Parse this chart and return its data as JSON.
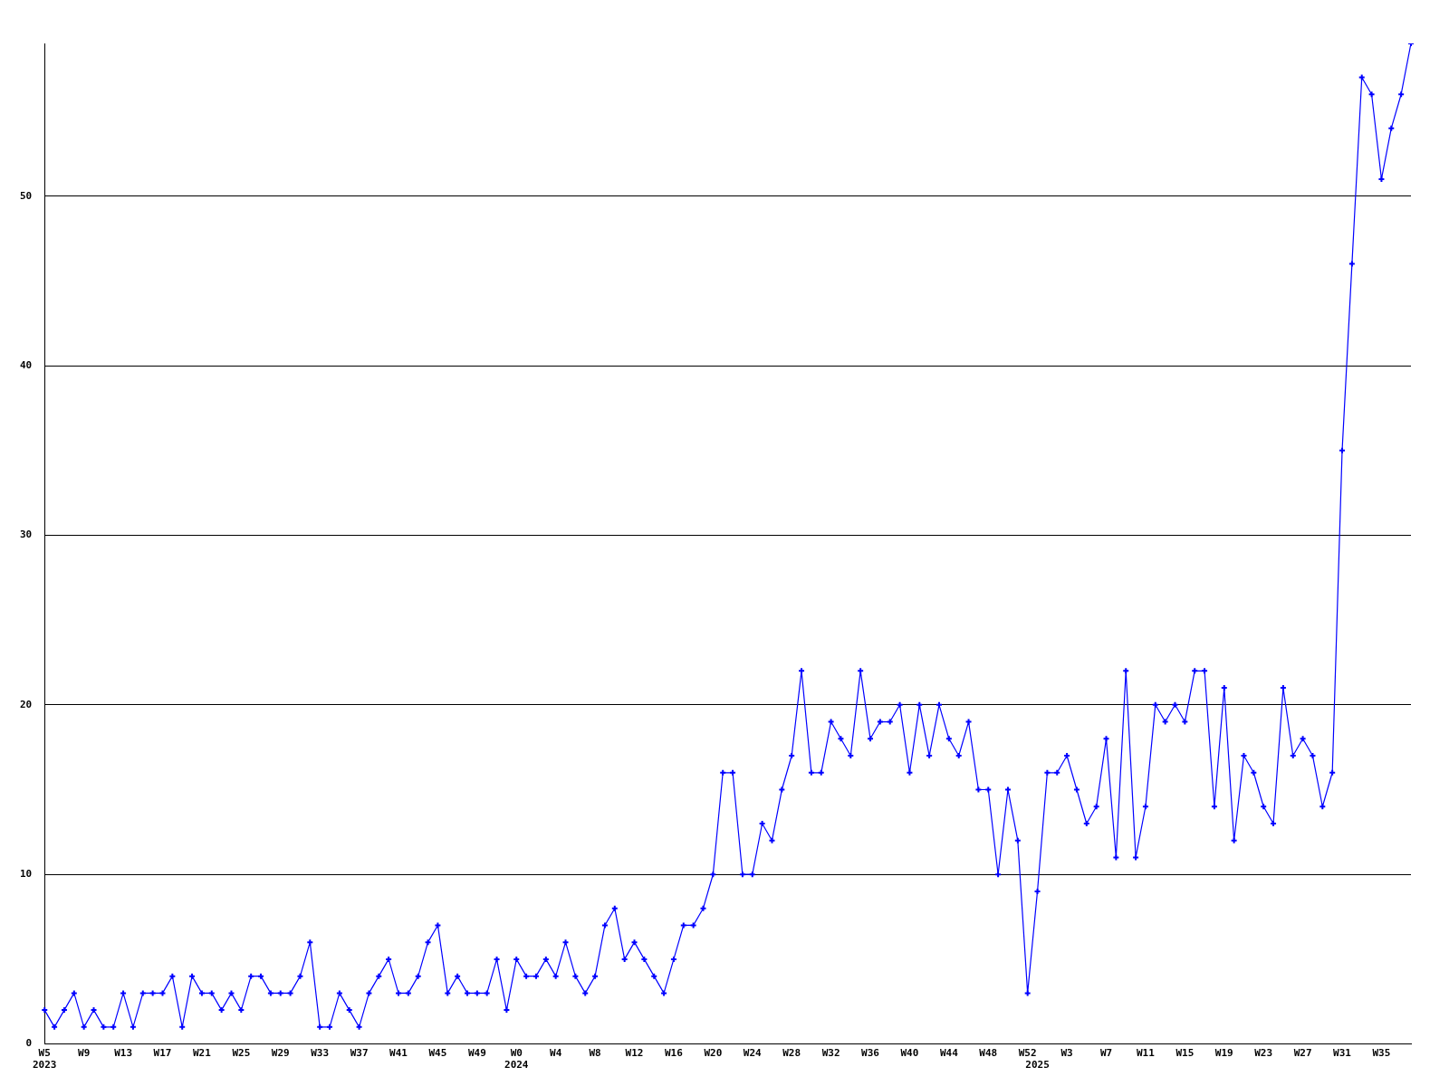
{
  "chart_data": {
    "type": "line",
    "categories": [
      "W5\n2023",
      null,
      null,
      null,
      "W9",
      null,
      null,
      null,
      "W13",
      null,
      null,
      null,
      "W17",
      null,
      null,
      null,
      "W21",
      null,
      null,
      null,
      "W25",
      null,
      null,
      null,
      "W29",
      null,
      null,
      null,
      "W33",
      null,
      null,
      null,
      "W37",
      null,
      null,
      null,
      "W41",
      null,
      null,
      null,
      "W45",
      null,
      null,
      null,
      "W49",
      null,
      null,
      null,
      "W0\n2024",
      null,
      null,
      null,
      "W4",
      null,
      null,
      null,
      "W8",
      null,
      null,
      null,
      "W12",
      null,
      null,
      null,
      "W16",
      null,
      null,
      null,
      "W20",
      null,
      null,
      null,
      "W24",
      null,
      null,
      null,
      "W28",
      null,
      null,
      null,
      "W32",
      null,
      null,
      null,
      "W36",
      null,
      null,
      null,
      "W40",
      null,
      null,
      null,
      "W44",
      null,
      null,
      null,
      "W48",
      null,
      null,
      null,
      "W52",
      "\n2025",
      null,
      null,
      "W3",
      null,
      null,
      null,
      "W7",
      null,
      null,
      null,
      "W11",
      null,
      null,
      null,
      "W15",
      null,
      null,
      null,
      "W19",
      null,
      null,
      null,
      "W23",
      null,
      null,
      null,
      "W27",
      null,
      null,
      null,
      "W31",
      null,
      null,
      null,
      "W35",
      null,
      null,
      null
    ],
    "series": [
      {
        "color": "#0000ff",
        "values": [
          2,
          1,
          2,
          3,
          1,
          2,
          1,
          1,
          3,
          1,
          3,
          3,
          3,
          4,
          1,
          4,
          3,
          3,
          2,
          3,
          2,
          4,
          4,
          3,
          3,
          3,
          4,
          6,
          1,
          1,
          3,
          2,
          1,
          3,
          4,
          5,
          3,
          3,
          4,
          6,
          7,
          3,
          4,
          3,
          3,
          3,
          5,
          2,
          5,
          4,
          4,
          5,
          4,
          6,
          4,
          3,
          4,
          7,
          8,
          5,
          6,
          5,
          4,
          3,
          5,
          7,
          7,
          8,
          10,
          16,
          16,
          10,
          10,
          13,
          12,
          15,
          17,
          22,
          16,
          16,
          19,
          18,
          17,
          22,
          18,
          19,
          19,
          20,
          16,
          20,
          17,
          20,
          18,
          17,
          19,
          15,
          15,
          10,
          15,
          12,
          3,
          9,
          16,
          16,
          17,
          15,
          13,
          14,
          18,
          11,
          22,
          11,
          14,
          20,
          19,
          20,
          19,
          22,
          22,
          14,
          21,
          12,
          17,
          16,
          14,
          13,
          21,
          17,
          18,
          17,
          14,
          16,
          35,
          46,
          57,
          56,
          51,
          54,
          56,
          59
        ]
      }
    ],
    "ylim": [
      0,
      59
    ],
    "yticks": [
      0,
      10,
      20,
      30,
      40,
      50
    ],
    "grid": "y",
    "legend": false,
    "marker": "cross",
    "line_style": "solid"
  }
}
